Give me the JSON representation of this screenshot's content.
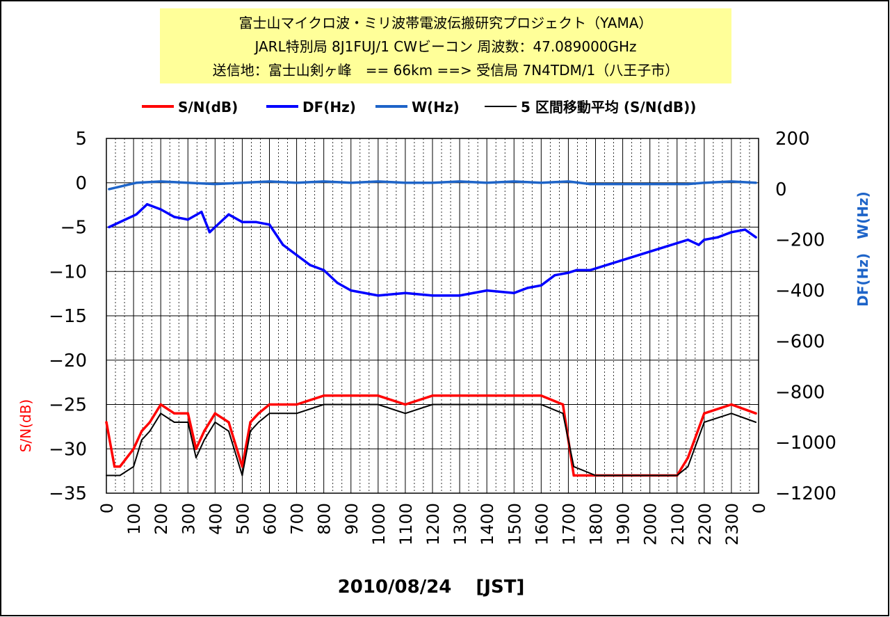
{
  "chart_data": {
    "type": "line",
    "title_lines": [
      "富士山マイクロ波・ミリ波帯電波伝搬研究プロジェクト（YAMA）",
      "JARL特別局 8J1FUJ/1 CWビーコン 周波数：47.089000GHz",
      "送信地：富士山剣ヶ峰　== 66km ==> 受信局 7N4TDM/1（八王子市）"
    ],
    "xlabel": "2010/08/24　 [JST]",
    "ylabel_left": "S/N(dB)",
    "ylabel_right": "DF(Hz)　W(Hz)",
    "x_ticks": [
      "0",
      "100",
      "200",
      "300",
      "400",
      "500",
      "600",
      "700",
      "800",
      "900",
      "1000",
      "1100",
      "1200",
      "1300",
      "1400",
      "1500",
      "1600",
      "1700",
      "1800",
      "1900",
      "2000",
      "2100",
      "2200",
      "2300",
      "0"
    ],
    "ylim_left": [
      -35,
      5
    ],
    "y_ticks_left": [
      5,
      0,
      -5,
      -10,
      -15,
      -20,
      -25,
      -30,
      -35
    ],
    "ylim_right": [
      -1200,
      200
    ],
    "y_ticks_right": [
      200,
      0,
      -200,
      -400,
      -600,
      -800,
      -1000,
      -1200
    ],
    "grid": true,
    "legend_position": "top",
    "colors": {
      "sn": "#ff0000",
      "df": "#0000ff",
      "w": "#1e64c8",
      "avg": "#000000",
      "title_bg": "#ffff99",
      "grid": "#000000"
    },
    "series": [
      {
        "name": "S/N(dB)",
        "axis": "left",
        "x": [
          0,
          0.3,
          0.5,
          1,
          1.3,
          1.6,
          2.0,
          2.5,
          3.0,
          3.3,
          3.6,
          4.0,
          4.5,
          5.0,
          5.3,
          5.6,
          6,
          7,
          8,
          9,
          10,
          11,
          12,
          13,
          14,
          15,
          16,
          16.8,
          17.2,
          18,
          19,
          20,
          21,
          21.4,
          22,
          23,
          23.9
        ],
        "values": [
          -27,
          -32,
          -32,
          -30,
          -28,
          -27,
          -25,
          -26,
          -26,
          -30,
          -28,
          -26,
          -27,
          -32,
          -27,
          -26,
          -25,
          -25,
          -24,
          -24,
          -24,
          -25,
          -24,
          -24,
          -24,
          -24,
          -24,
          -25,
          -33,
          -33,
          -33,
          -33,
          -33,
          -31,
          -26,
          -25,
          -26
        ]
      },
      {
        "name": "DF(Hz)",
        "axis": "right",
        "x": [
          0.1,
          1.1,
          1.5,
          2.0,
          2.5,
          3.0,
          3.5,
          3.8,
          4.0,
          4.5,
          5.0,
          5.5,
          6.0,
          6.5,
          7.0,
          7.5,
          8.0,
          8.5,
          9.0,
          10.0,
          11.0,
          12.0,
          13.0,
          14.0,
          15.0,
          15.5,
          16.0,
          16.5,
          17.0,
          17.3,
          17.8,
          21.4,
          21.8,
          22.0,
          22.5,
          23.0,
          23.5,
          23.9
        ],
        "values": [
          -150,
          -100,
          -60,
          -80,
          -110,
          -120,
          -90,
          -170,
          -150,
          -100,
          -130,
          -130,
          -140,
          -220,
          -260,
          -300,
          -320,
          -370,
          -400,
          -420,
          -410,
          -420,
          -420,
          -400,
          -410,
          -390,
          -380,
          -340,
          -330,
          -320,
          -320,
          -200,
          -220,
          -200,
          -190,
          -170,
          -160,
          -190
        ]
      },
      {
        "name": "W(Hz)",
        "axis": "right",
        "x": [
          0.1,
          1.1,
          2,
          3,
          4,
          5,
          6,
          7,
          8,
          9,
          10,
          11,
          12,
          13,
          14,
          15,
          16,
          17,
          17.8,
          21.4,
          22,
          23,
          23.9
        ],
        "values": [
          0,
          25,
          30,
          25,
          20,
          25,
          30,
          25,
          30,
          25,
          30,
          25,
          25,
          30,
          25,
          30,
          25,
          30,
          20,
          20,
          25,
          30,
          25
        ]
      },
      {
        "name": "5 区間移動平均 (S/N(dB))",
        "axis": "left",
        "x": [
          0,
          0.3,
          0.5,
          1,
          1.3,
          1.6,
          2.0,
          2.5,
          3.0,
          3.3,
          3.6,
          4.0,
          4.5,
          5.0,
          5.3,
          5.6,
          6,
          7,
          8,
          9,
          10,
          11,
          12,
          13,
          14,
          15,
          16,
          16.8,
          17.2,
          18,
          19,
          20,
          21,
          21.4,
          22,
          23,
          23.9
        ],
        "values": [
          -33,
          -33,
          -33,
          -32,
          -29,
          -28,
          -26,
          -27,
          -27,
          -31,
          -29,
          -27,
          -28,
          -33,
          -28,
          -27,
          -26,
          -26,
          -25,
          -25,
          -25,
          -26,
          -25,
          -25,
          -25,
          -25,
          -25,
          -26,
          -32,
          -33,
          -33,
          -33,
          -33,
          -32,
          -27,
          -26,
          -27
        ]
      }
    ]
  }
}
